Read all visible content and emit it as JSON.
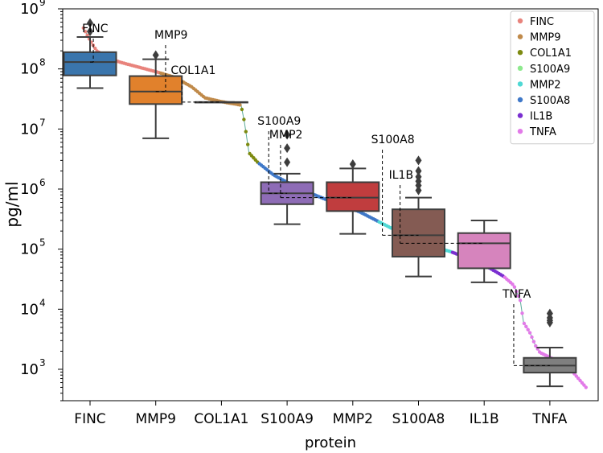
{
  "chart_data": {
    "type": "box",
    "xlabel": "protein",
    "ylabel": "pg/ml",
    "yscale": "log",
    "ylim": [
      300,
      1000000000
    ],
    "y_ticks": [
      {
        "value": 1000,
        "base": "10",
        "exp": "3"
      },
      {
        "value": 10000,
        "base": "10",
        "exp": "4"
      },
      {
        "value": 100000,
        "base": "10",
        "exp": "5"
      },
      {
        "value": 1000000,
        "base": "10",
        "exp": "6"
      },
      {
        "value": 10000000,
        "base": "10",
        "exp": "7"
      },
      {
        "value": 100000000,
        "base": "10",
        "exp": "8"
      },
      {
        "value": 1000000000,
        "base": "10",
        "exp": "9"
      }
    ],
    "categories": [
      "FINC",
      "MMP9",
      "COL1A1",
      "S100A9",
      "MMP2",
      "S100A8",
      "IL1B",
      "TNFA"
    ],
    "boxes": [
      {
        "name": "FINC",
        "color": "#3a75ac",
        "whislo": 48000000,
        "q1": 78000000,
        "med": 130000000,
        "q3": 190000000,
        "whishi": 340000000,
        "fliers": [
          420000000,
          580000000
        ]
      },
      {
        "name": "MMP9",
        "color": "#e1812c",
        "whislo": 7000000,
        "q1": 26000000,
        "med": 42000000,
        "q3": 76000000,
        "whishi": 145000000,
        "fliers": [
          170000000
        ]
      },
      {
        "name": "COL1A1",
        "color": "#3a923a",
        "whislo": 28000000,
        "q1": 28000000,
        "med": 28000000,
        "q3": 28000000,
        "whishi": 28000000,
        "fliers": []
      },
      {
        "name": "S100A9",
        "color": "#8e6cb6",
        "whislo": 260000,
        "q1": 560000,
        "med": 850000,
        "q3": 1300000,
        "whishi": 1800000,
        "fliers": [
          2800000,
          4800000,
          8000000
        ]
      },
      {
        "name": "MMP2",
        "color": "#c03d3e",
        "whislo": 180000,
        "q1": 430000,
        "med": 720000,
        "q3": 1300000,
        "whishi": 2200000,
        "fliers": [
          2600000
        ]
      },
      {
        "name": "S100A8",
        "color": "#845b53",
        "whislo": 35000,
        "q1": 75000,
        "med": 170000,
        "q3": 460000,
        "whishi": 720000,
        "fliers": [
          950000,
          1150000,
          1350000,
          1600000,
          2000000,
          3000000
        ]
      },
      {
        "name": "IL1B",
        "color": "#d684bd",
        "whislo": 28000,
        "q1": 48000,
        "med": 125000,
        "q3": 185000,
        "whishi": 300000,
        "fliers": []
      },
      {
        "name": "TNFA",
        "color": "#7f7f7f",
        "whislo": 520,
        "q1": 880,
        "med": 1150,
        "q3": 1550,
        "whishi": 2300,
        "fliers": [
          6000,
          6500,
          7200,
          8500
        ]
      }
    ],
    "annotations": [
      {
        "label": "FINC",
        "value": 130000000,
        "xpos": 1.05
      },
      {
        "label": "MMP9",
        "value": 42000000,
        "xpos": 2.15
      },
      {
        "label": "COL1A1",
        "value": 28000000,
        "xpos": 2.4
      },
      {
        "label": "S100A9",
        "value": 850000,
        "xpos": 3.72
      },
      {
        "label": "MMP2",
        "value": 720000,
        "xpos": 3.9
      },
      {
        "label": "S100A8",
        "value": 170000,
        "xpos": 5.45
      },
      {
        "label": "IL1B",
        "value": 125000,
        "xpos": 5.72
      },
      {
        "label": "TNFA",
        "value": 1150,
        "xpos": 7.45
      }
    ],
    "legend": {
      "position": "top-right",
      "entries": [
        {
          "label": "FINC",
          "color": "#e8837c"
        },
        {
          "label": "MMP9",
          "color": "#c08a4a"
        },
        {
          "label": "COL1A1",
          "color": "#7d8a10"
        },
        {
          "label": "S100A9",
          "color": "#8ee98e"
        },
        {
          "label": "MMP2",
          "color": "#4fd8d4"
        },
        {
          "label": "S100A8",
          "color": "#3f78c8"
        },
        {
          "label": "IL1B",
          "color": "#7a2fd0"
        },
        {
          "label": "TNFA",
          "color": "#e27ae8"
        }
      ]
    },
    "sorted_curve": [
      {
        "x": 0.9,
        "y": 480000000
      },
      {
        "x": 1.0,
        "y": 300000000
      },
      {
        "x": 1.1,
        "y": 200000000
      },
      {
        "x": 1.25,
        "y": 160000000
      },
      {
        "x": 1.45,
        "y": 130000000
      },
      {
        "x": 1.7,
        "y": 110000000
      },
      {
        "x": 2.0,
        "y": 90000000
      },
      {
        "x": 2.3,
        "y": 72000000
      },
      {
        "x": 2.55,
        "y": 50000000
      },
      {
        "x": 2.75,
        "y": 33000000
      },
      {
        "x": 3.0,
        "y": 28500000
      },
      {
        "x": 3.3,
        "y": 25000000
      },
      {
        "x": 3.35,
        "y": 13000000
      },
      {
        "x": 3.42,
        "y": 4000000
      },
      {
        "x": 3.55,
        "y": 2800000
      },
      {
        "x": 3.8,
        "y": 1700000
      },
      {
        "x": 4.2,
        "y": 1000000
      },
      {
        "x": 4.7,
        "y": 600000
      },
      {
        "x": 5.1,
        "y": 420000
      },
      {
        "x": 5.5,
        "y": 250000
      },
      {
        "x": 5.8,
        "y": 170000
      },
      {
        "x": 6.0,
        "y": 130000
      },
      {
        "x": 6.5,
        "y": 90000
      },
      {
        "x": 7.0,
        "y": 55000
      },
      {
        "x": 7.3,
        "y": 35000
      },
      {
        "x": 7.45,
        "y": 25000
      },
      {
        "x": 7.55,
        "y": 14000
      },
      {
        "x": 7.6,
        "y": 6000
      },
      {
        "x": 7.7,
        "y": 4000
      },
      {
        "x": 7.78,
        "y": 2500
      },
      {
        "x": 7.85,
        "y": 1900
      },
      {
        "x": 8.1,
        "y": 1400
      },
      {
        "x": 8.35,
        "y": 900
      },
      {
        "x": 8.55,
        "y": 500
      }
    ],
    "curve_segments": [
      {
        "from": 0.9,
        "to": 2.05,
        "color": "#e8837c"
      },
      {
        "from": 2.05,
        "to": 3.3,
        "color": "#c08a4a"
      },
      {
        "from": 3.3,
        "to": 3.55,
        "color": "#7d8a10"
      },
      {
        "from": 3.55,
        "to": 4.6,
        "color": "#3f78c8"
      },
      {
        "from": 4.6,
        "to": 5.4,
        "color": "#3f78c8"
      },
      {
        "from": 5.4,
        "to": 6.5,
        "color": "#4fd8d4"
      },
      {
        "from": 6.5,
        "to": 7.3,
        "color": "#7a2fd0"
      },
      {
        "from": 7.3,
        "to": 8.6,
        "color": "#e27ae8"
      }
    ]
  }
}
